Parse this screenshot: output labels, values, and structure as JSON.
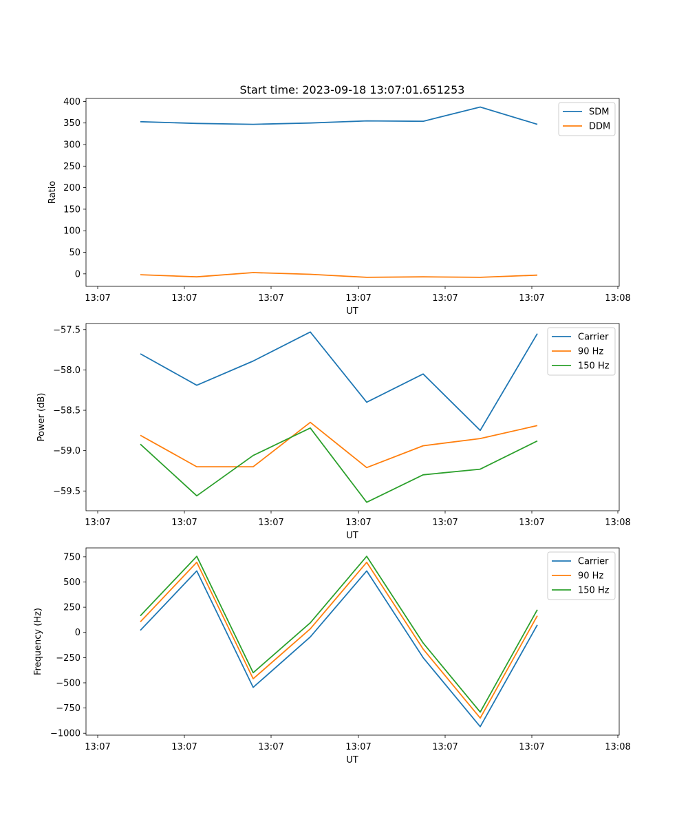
{
  "title": "Start time: 2023-09-18 13:07:01.651253",
  "colors": {
    "blue": "#1f77b4",
    "orange": "#ff7f0e",
    "green": "#2ca02c"
  },
  "chart_data": [
    {
      "type": "line",
      "xlabel": "UT",
      "ylabel": "Ratio",
      "xtick_labels": [
        "13:07",
        "13:07",
        "13:07",
        "13:07",
        "13:07",
        "13:07",
        "13:08"
      ],
      "yticks": [
        0,
        50,
        100,
        150,
        200,
        250,
        300,
        350,
        400
      ],
      "ytick_labels": [
        "0",
        "50",
        "100",
        "150",
        "200",
        "250",
        "300",
        "350",
        "400"
      ],
      "ylim": [
        -29,
        407
      ],
      "legend": "top-right",
      "series": [
        {
          "name": "SDM",
          "color": "#1f77b4",
          "values": [
            353,
            349,
            347,
            350,
            355,
            354,
            387,
            347
          ]
        },
        {
          "name": "DDM",
          "color": "#ff7f0e",
          "values": [
            -2,
            -7,
            3,
            -1,
            -8,
            -7,
            -8,
            -3
          ]
        }
      ]
    },
    {
      "type": "line",
      "xlabel": "UT",
      "ylabel": "Power (dB)",
      "xtick_labels": [
        "13:07",
        "13:07",
        "13:07",
        "13:07",
        "13:07",
        "13:07",
        "13:08"
      ],
      "yticks": [
        -59.5,
        -59.0,
        -58.5,
        -58.0,
        -57.5
      ],
      "ytick_labels": [
        "−59.5",
        "−59.0",
        "−58.5",
        "−58.0",
        "−57.5"
      ],
      "ylim": [
        -59.745,
        -57.425
      ],
      "legend": "top-right",
      "series": [
        {
          "name": "Carrier",
          "color": "#1f77b4",
          "values": [
            -57.8,
            -58.19,
            -57.89,
            -57.53,
            -58.4,
            -58.05,
            -58.75,
            -57.55
          ]
        },
        {
          "name": "90 Hz",
          "color": "#ff7f0e",
          "values": [
            -58.81,
            -59.2,
            -59.2,
            -58.65,
            -59.21,
            -58.94,
            -58.85,
            -58.69
          ]
        },
        {
          "name": "150 Hz",
          "color": "#2ca02c",
          "values": [
            -58.92,
            -59.56,
            -59.06,
            -58.72,
            -59.64,
            -59.3,
            -59.23,
            -58.88
          ]
        }
      ]
    },
    {
      "type": "line",
      "xlabel": "UT",
      "ylabel": "Frequency (Hz)",
      "xtick_labels": [
        "13:07",
        "13:07",
        "13:07",
        "13:07",
        "13:07",
        "13:07",
        "13:08"
      ],
      "yticks": [
        -1000,
        -750,
        -500,
        -250,
        0,
        250,
        500,
        750
      ],
      "ytick_labels": [
        "−1000",
        "−750",
        "−500",
        "−250",
        "0",
        "250",
        "500",
        "750"
      ],
      "ylim": [
        -1019,
        838
      ],
      "legend": "top-right",
      "series": [
        {
          "name": "Carrier",
          "color": "#1f77b4",
          "values": [
            20,
            610,
            -545,
            -45,
            610,
            -250,
            -935,
            75
          ]
        },
        {
          "name": "90 Hz",
          "color": "#ff7f0e",
          "values": [
            105,
            695,
            -460,
            35,
            695,
            -165,
            -850,
            165
          ]
        },
        {
          "name": "150 Hz",
          "color": "#2ca02c",
          "values": [
            165,
            755,
            -400,
            95,
            755,
            -105,
            -790,
            225
          ]
        }
      ]
    }
  ]
}
